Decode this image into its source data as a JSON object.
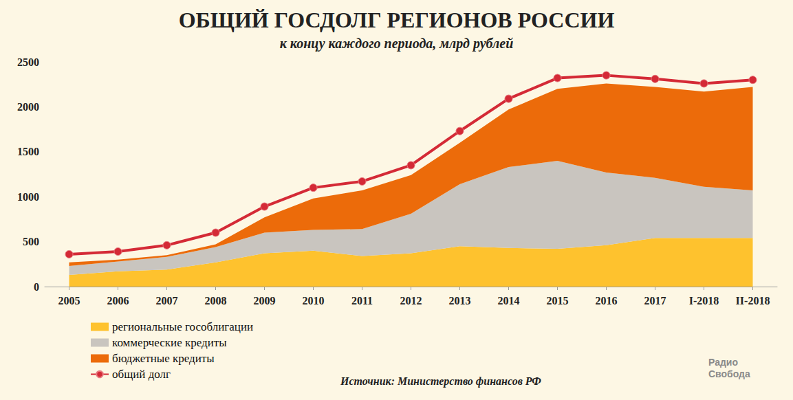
{
  "chart_data": {
    "type": "area",
    "title": "ОБЩИЙ ГОСДОЛГ РЕГИОНОВ РОССИИ",
    "subtitle": "к концу каждого периода, млрд рублей",
    "annotations": [
      "Источник: Министерство финансов РФ",
      "Радио Свобода"
    ],
    "categories": [
      "2005",
      "2006",
      "2007",
      "2008",
      "2009",
      "2010",
      "2011",
      "2012",
      "2013",
      "2014",
      "2015",
      "2016",
      "2017",
      "I-2018",
      "II-2018"
    ],
    "stacked": true,
    "grid": false,
    "legend": "bottom-left",
    "ylim": [
      0,
      2500
    ],
    "yticks": [
      0,
      500,
      1000,
      1500,
      2000,
      2500
    ],
    "series": [
      {
        "name": "региональные гособлигации",
        "type": "area",
        "color": "#fec22e",
        "values": [
          130,
          170,
          190,
          270,
          370,
          400,
          340,
          370,
          450,
          430,
          420,
          460,
          540,
          540,
          540
        ]
      },
      {
        "name": "коммерческие кредиты",
        "type": "area",
        "color": "#c9c5bf",
        "values": [
          100,
          110,
          140,
          170,
          230,
          230,
          300,
          440,
          690,
          900,
          980,
          810,
          670,
          570,
          530
        ]
      },
      {
        "name": "бюджетные кредиты",
        "type": "area",
        "color": "#ec6b0a",
        "values": [
          40,
          20,
          20,
          30,
          170,
          350,
          430,
          430,
          460,
          640,
          800,
          990,
          1010,
          1060,
          1150
        ]
      },
      {
        "name": "общий долг",
        "type": "line",
        "color": "#d42a36",
        "marker": "circle",
        "values": [
          360,
          390,
          460,
          600,
          890,
          1100,
          1170,
          1350,
          1730,
          2090,
          2320,
          2350,
          2310,
          2260,
          2300
        ]
      }
    ]
  }
}
